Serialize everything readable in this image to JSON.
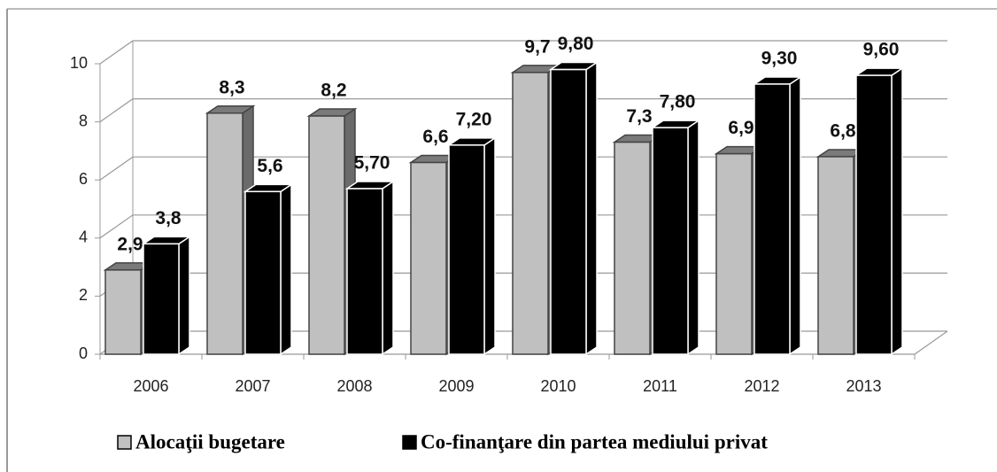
{
  "chart_data": {
    "type": "bar3d",
    "categories": [
      "2006",
      "2007",
      "2008",
      "2009",
      "2010",
      "2011",
      "2012",
      "2013"
    ],
    "series": [
      {
        "name": "Alocaţii bugetare",
        "color": "#c0c0c0",
        "values": [
          2.9,
          8.3,
          8.2,
          6.6,
          9.7,
          7.3,
          6.9,
          6.8
        ],
        "value_labels": [
          "2,9",
          "8,3",
          "8,2",
          "6,6",
          "9,7",
          "7,3",
          "6,9",
          "6,8"
        ]
      },
      {
        "name": "Co-finanţare din partea mediului privat",
        "color": "#000000",
        "values": [
          3.8,
          5.6,
          5.7,
          7.2,
          9.8,
          7.8,
          9.3,
          9.6
        ],
        "value_labels": [
          "3,8",
          "5,6",
          "5,70",
          "7,20",
          "9,80",
          "7,80",
          "9,30",
          "9,60"
        ]
      }
    ],
    "ylim": [
      0,
      10
    ],
    "yticks": [
      0,
      2,
      4,
      6,
      8,
      10
    ],
    "grid": true,
    "legend": "bottom"
  }
}
